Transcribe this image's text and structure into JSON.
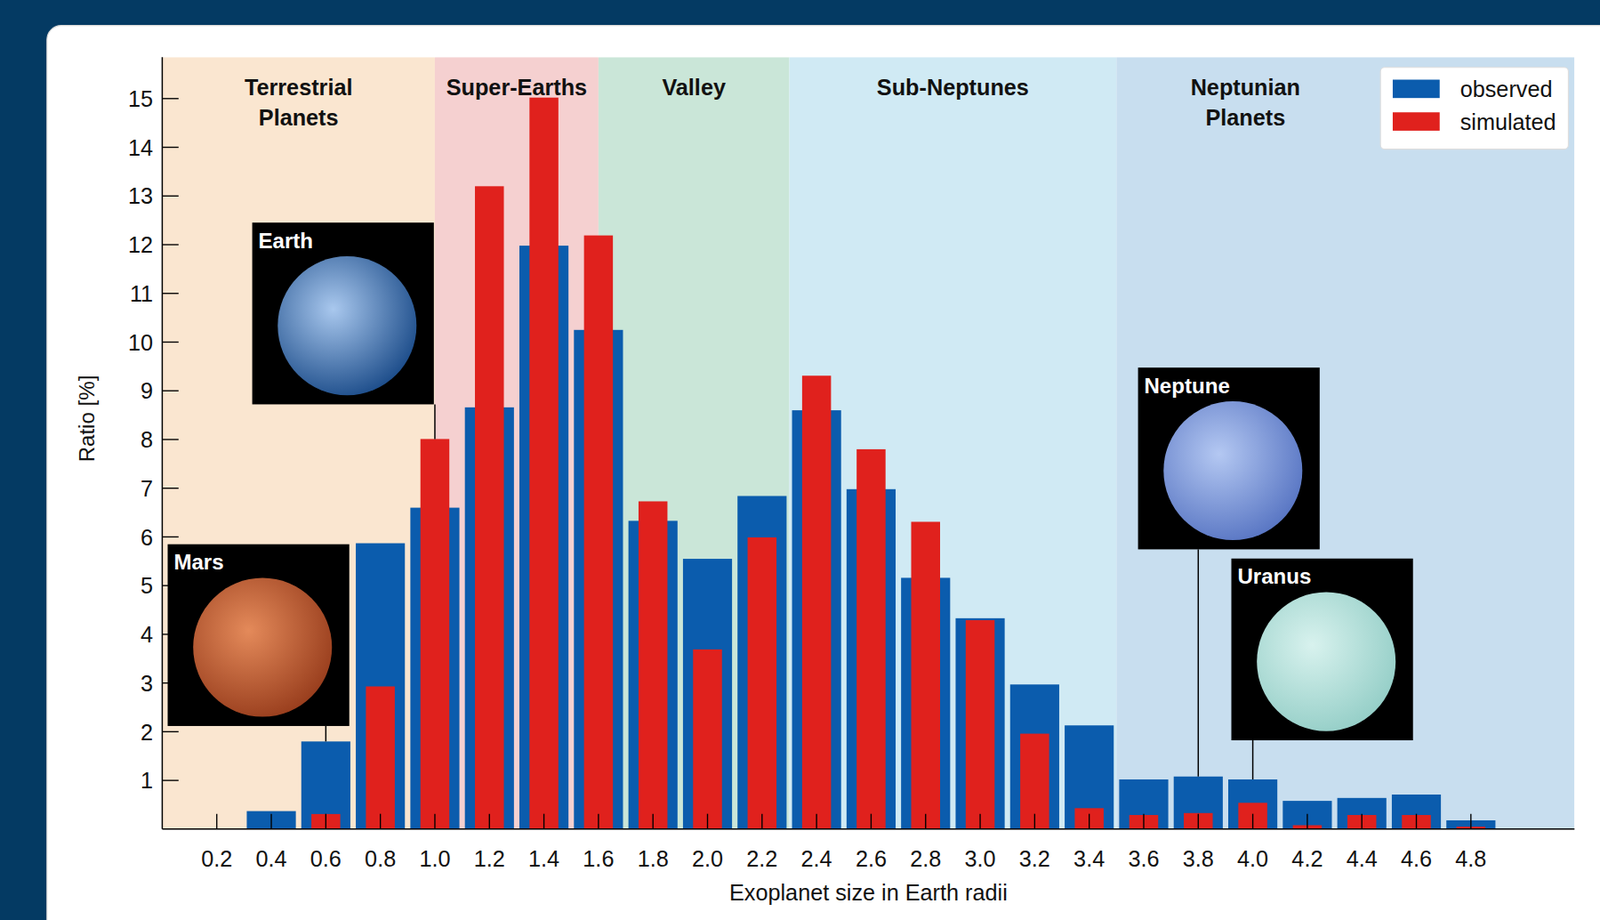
{
  "chart_data": {
    "type": "bar",
    "x_label": "Exoplanet size in Earth radii",
    "y_label": "Ratio [%]",
    "x": [
      0.2,
      0.4,
      0.6,
      0.8,
      1.0,
      1.2,
      1.4,
      1.6,
      1.8,
      2.0,
      2.2,
      2.4,
      2.6,
      2.8,
      3.0,
      3.2,
      3.4,
      3.6,
      3.8,
      4.0,
      4.2,
      4.4,
      4.6,
      4.8
    ],
    "series": [
      {
        "name": "observed",
        "color": "#0b5cad",
        "values": [
          0,
          0.37,
          1.8,
          5.87,
          6.6,
          8.66,
          11.98,
          10.25,
          6.33,
          5.55,
          6.84,
          8.6,
          6.98,
          5.16,
          4.33,
          2.97,
          2.13,
          1.02,
          1.08,
          1.02,
          0.58,
          0.64,
          0.71,
          0.18
        ]
      },
      {
        "name": "simulated",
        "color": "#e0211d",
        "values": [
          0,
          0,
          0.31,
          2.93,
          8.01,
          13.2,
          15.02,
          12.19,
          6.73,
          3.69,
          5.99,
          9.31,
          7.8,
          6.31,
          4.29,
          1.96,
          0.43,
          0.29,
          0.33,
          0.54,
          0.08,
          0.29,
          0.29,
          0.05
        ]
      }
    ],
    "xlim": [
      0,
      5.18
    ],
    "xticks": [
      0.2,
      0.4,
      0.6,
      0.8,
      {
        "value": 1,
        "label": "1.0"
      },
      1.2,
      1.4,
      1.6,
      1.8,
      {
        "value": 2,
        "label": "2.0"
      },
      2.2,
      2.4,
      2.6,
      2.8,
      {
        "value": 3,
        "label": "3.0"
      },
      3.2,
      3.4,
      3.6,
      3.8,
      {
        "value": 4,
        "label": "4.0"
      },
      4.2,
      4.4,
      4.6,
      4.8
    ],
    "ylim": [
      0,
      15.85
    ],
    "yticks": [
      1,
      2,
      3,
      4,
      5,
      6,
      7,
      8,
      9,
      10,
      11,
      12,
      13,
      14,
      15
    ],
    "grid": false,
    "legend": "upper right",
    "regions": [
      {
        "label": "Terrestrial Planets",
        "from": 0,
        "to": 1.0,
        "color": "#fae6d0"
      },
      {
        "label": "Super-Earths",
        "from": 1.0,
        "to": 1.6,
        "color": "#f5d0d0"
      },
      {
        "label": "Valley",
        "from": 1.6,
        "to": 2.3,
        "color": "#cae6d8"
      },
      {
        "label": "Sub-Neptunes",
        "from": 2.3,
        "to": 3.5,
        "color": "#d0eaf4"
      },
      {
        "label": "Neptunian Planets",
        "from": 3.5,
        "to": 5.18,
        "color": "#c8deef"
      }
    ],
    "annotations": [
      {
        "text": "Mars",
        "x": 0.6
      },
      {
        "text": "Earth",
        "x": 1.0
      },
      {
        "text": "Neptune",
        "x": 3.8
      },
      {
        "text": "Uranus",
        "x": 4.0
      }
    ]
  }
}
